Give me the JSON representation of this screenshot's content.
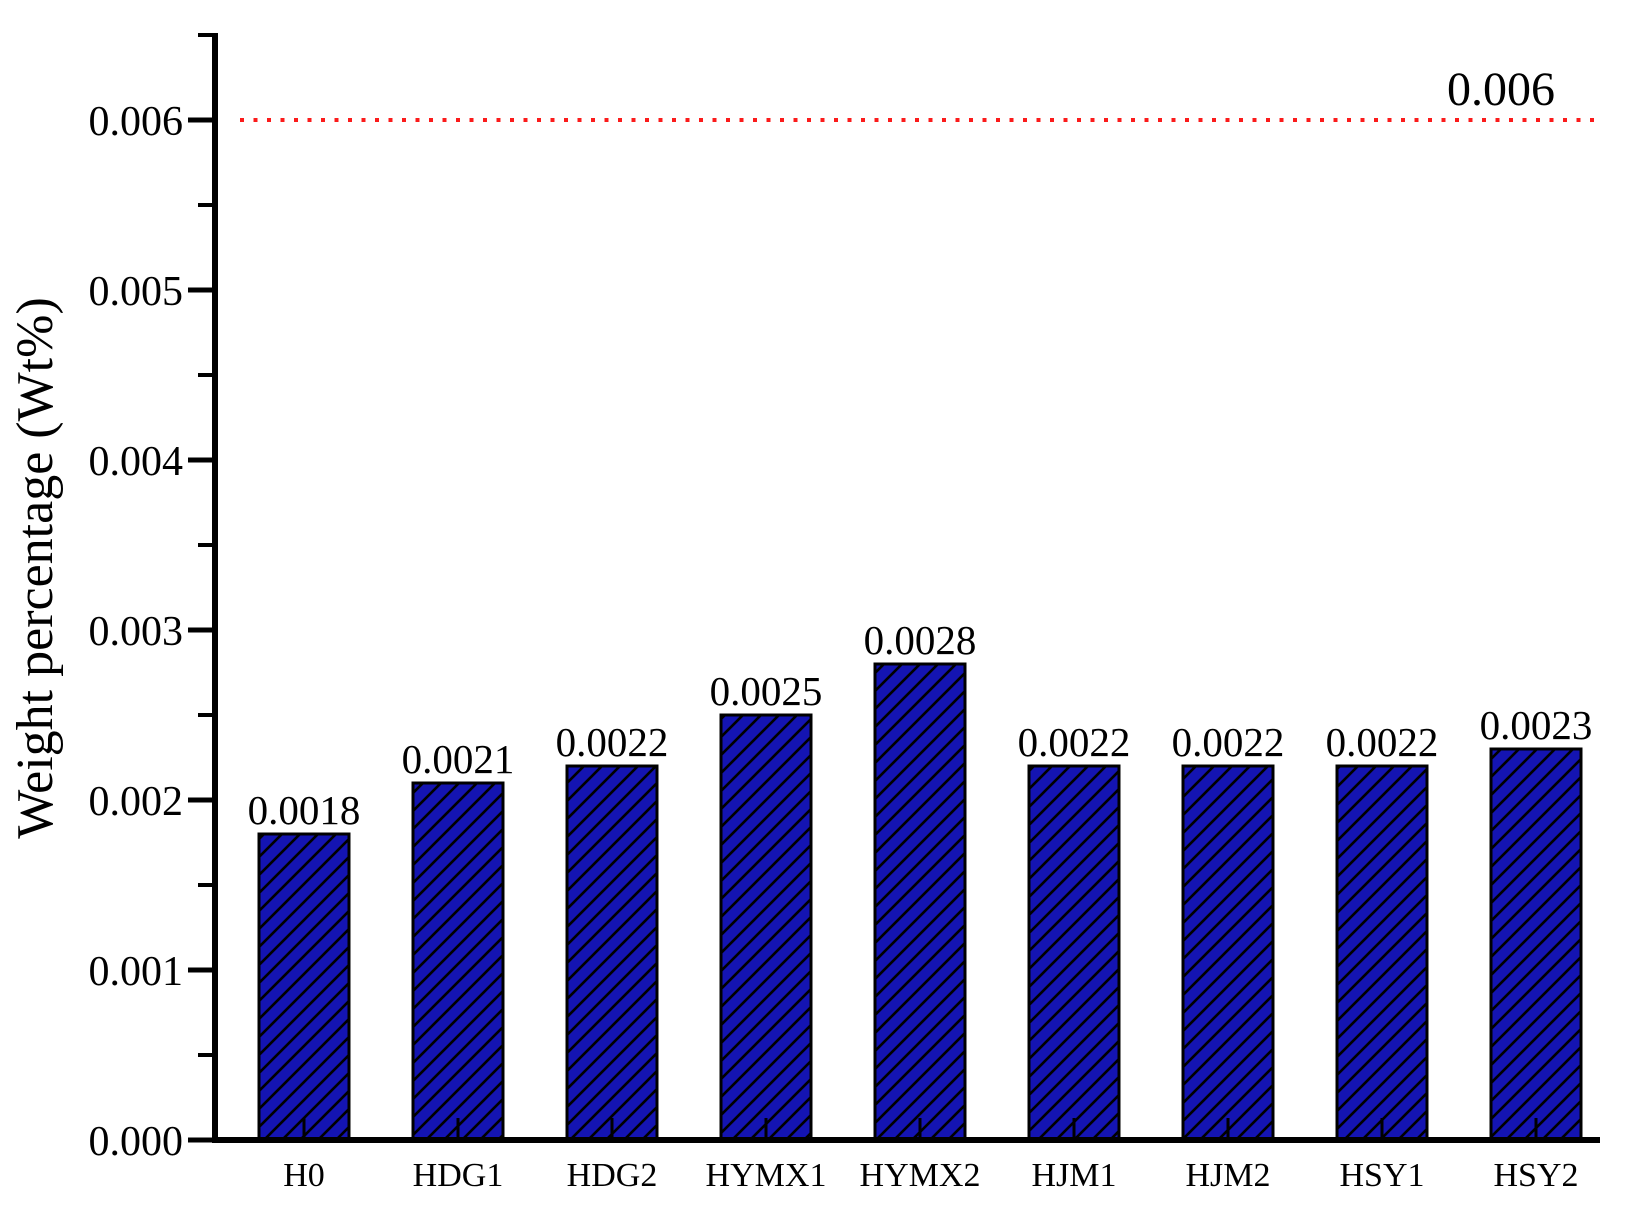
{
  "chart_data": {
    "type": "bar",
    "title": "",
    "categories": [
      "H0",
      "HDG1",
      "HDG2",
      "HYMX1",
      "HYMX2",
      "HJM1",
      "HJM2",
      "HSY1",
      "HSY2"
    ],
    "values": [
      0.0018,
      0.0021,
      0.0022,
      0.0025,
      0.0028,
      0.0022,
      0.0022,
      0.0022,
      0.0023
    ],
    "bar_labels": [
      "0.0018",
      "0.0021",
      "0.0022",
      "0.0025",
      "0.0028",
      "0.0022",
      "0.0022",
      "0.0022",
      "0.0023"
    ],
    "xlabel": "",
    "ylabel": "Weight percentage (Wt%)",
    "ylim": [
      0,
      0.0065
    ],
    "yticks": [
      0,
      0.001,
      0.002,
      0.003,
      0.004,
      0.005,
      0.006
    ],
    "ytick_labels": [
      "0.000",
      "0.001",
      "0.002",
      "0.003",
      "0.004",
      "0.005",
      "0.006"
    ],
    "minor_yticks": [
      0.0005,
      0.0015,
      0.0025,
      0.0035,
      0.0045,
      0.0055,
      0.0065
    ],
    "grid": false,
    "legend_position": "none",
    "reference_line": {
      "value": 0.006,
      "label": "0.006",
      "color": "#fb1b1b",
      "style": "dotted"
    },
    "bar_fill_color": "#1414b2",
    "bar_edge_color": "#000000",
    "hatch_pattern": "diagonal-forward",
    "hatch_color": "#000000",
    "axis_color": "#000000",
    "text_color": "#000000"
  }
}
